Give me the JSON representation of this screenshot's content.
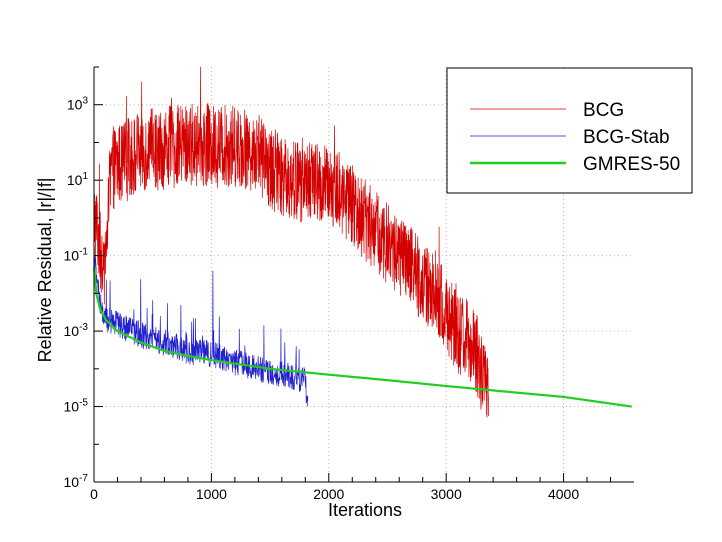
{
  "chart_data": {
    "type": "line",
    "title": "",
    "xlabel": "Iterations",
    "ylabel": "Relative Residual, |r|/|f|",
    "xlim": [
      0,
      4600
    ],
    "ylim": [
      1e-07,
      10000.0
    ],
    "yscale": "log",
    "grid": true,
    "legend_position": "top-right",
    "x_ticks": [
      "0",
      "1000",
      "2000",
      "3000",
      "4000"
    ],
    "y_ticks": [
      {
        "base": "10",
        "exp": "-7"
      },
      {
        "base": "10",
        "exp": "-5"
      },
      {
        "base": "10",
        "exp": "-3"
      },
      {
        "base": "10",
        "exp": "-1"
      },
      {
        "base": "10",
        "exp": "1"
      },
      {
        "base": "10",
        "exp": "3"
      }
    ],
    "series": [
      {
        "name": "BCG",
        "color": "#d40000",
        "style": "noisy-thin",
        "x": [
          0,
          30,
          80,
          150,
          250,
          400,
          600,
          800,
          1000,
          1200,
          1400,
          1500,
          1700,
          1900,
          2100,
          2300,
          2500,
          2700,
          2900,
          3100,
          3250,
          3360
        ],
        "y": [
          1,
          0.5,
          0.02,
          20,
          30,
          60,
          70,
          90,
          80,
          80,
          60,
          20,
          10,
          8,
          5,
          1,
          0.2,
          0.05,
          0.01,
          0.001,
          0.0003,
          2e-05
        ]
      },
      {
        "name": "BCG-Stab",
        "color": "#2020d0",
        "style": "noisy-thin",
        "x": [
          0,
          50,
          100,
          200,
          400,
          600,
          800,
          1000,
          1200,
          1400,
          1600,
          1800,
          1820
        ],
        "y": [
          0.1,
          0.005,
          0.002,
          0.0015,
          0.0008,
          0.0005,
          0.0003,
          0.00025,
          0.00015,
          0.0001,
          7e-05,
          5e-05,
          1e-05
        ]
      },
      {
        "name": "GMRES-50",
        "color": "#22cc22",
        "style": "smooth-thick",
        "x": [
          0,
          20,
          50,
          100,
          200,
          400,
          600,
          800,
          1000,
          1500,
          2000,
          2500,
          3000,
          3500,
          4000,
          4580
        ],
        "y": [
          0.05,
          0.01,
          0.004,
          0.002,
          0.001,
          0.0005,
          0.0003,
          0.00022,
          0.00017,
          0.0001,
          7e-05,
          5e-05,
          3.5e-05,
          2.5e-05,
          1.8e-05,
          1e-05
        ]
      }
    ]
  }
}
